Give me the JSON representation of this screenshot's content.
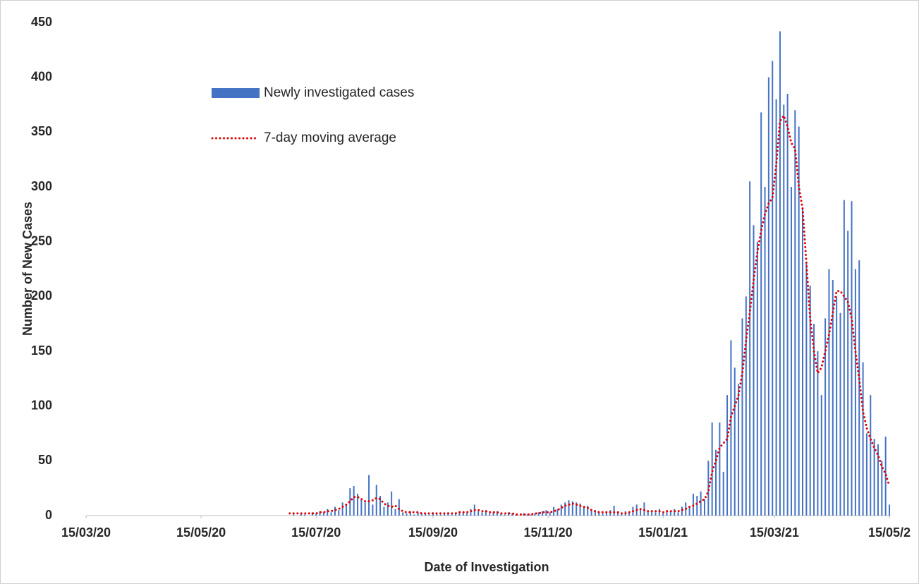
{
  "chart_data": {
    "type": "bar_line",
    "x_label": "Date of Investigation",
    "y_label": "Number of New Cases",
    "xlim": [
      0,
      426
    ],
    "xticks": [
      {
        "value": 0,
        "label": "15/03/20"
      },
      {
        "value": 61,
        "label": "15/05/20"
      },
      {
        "value": 122,
        "label": "15/07/20"
      },
      {
        "value": 184,
        "label": "15/09/20"
      },
      {
        "value": 245,
        "label": "15/11/20"
      },
      {
        "value": 306,
        "label": "15/01/21"
      },
      {
        "value": 365,
        "label": "15/03/21"
      },
      {
        "value": 426,
        "label": "15/05/2"
      }
    ],
    "ylim": [
      0,
      450
    ],
    "yticks": [
      0,
      50,
      100,
      150,
      200,
      250,
      300,
      350,
      400,
      450
    ],
    "grid": false,
    "x": [
      108,
      110,
      112,
      114,
      116,
      118,
      120,
      122,
      124,
      126,
      128,
      130,
      132,
      134,
      136,
      138,
      140,
      142,
      144,
      146,
      148,
      150,
      152,
      154,
      156,
      158,
      160,
      162,
      164,
      166,
      168,
      170,
      172,
      174,
      176,
      178,
      180,
      182,
      184,
      186,
      188,
      190,
      192,
      194,
      196,
      198,
      200,
      202,
      204,
      206,
      208,
      210,
      212,
      214,
      216,
      218,
      220,
      222,
      224,
      226,
      228,
      230,
      232,
      234,
      236,
      238,
      240,
      242,
      244,
      246,
      248,
      250,
      252,
      254,
      256,
      258,
      260,
      262,
      264,
      266,
      268,
      270,
      272,
      274,
      276,
      278,
      280,
      282,
      284,
      286,
      288,
      290,
      292,
      294,
      296,
      298,
      300,
      302,
      304,
      306,
      308,
      310,
      312,
      314,
      316,
      318,
      320,
      322,
      324,
      326,
      328,
      330,
      332,
      334,
      336,
      338,
      340,
      342,
      344,
      346,
      348,
      350,
      352,
      354,
      356,
      358,
      360,
      362,
      364,
      366,
      368,
      370,
      372,
      374,
      376,
      378,
      380,
      382,
      384,
      386,
      388,
      390,
      392,
      394,
      396,
      398,
      400,
      402,
      404,
      406,
      408,
      410,
      412,
      414,
      416,
      418,
      420,
      422,
      424,
      426
    ],
    "series": [
      {
        "name": "Newly investigated cases",
        "kind": "bar",
        "color": "#4472c4",
        "values": [
          0,
          1,
          0,
          2,
          1,
          0,
          3,
          2,
          4,
          3,
          6,
          3,
          8,
          5,
          12,
          10,
          25,
          27,
          20,
          15,
          12,
          37,
          10,
          28,
          18,
          8,
          12,
          22,
          6,
          15,
          3,
          2,
          4,
          1,
          3,
          2,
          2,
          1,
          3,
          2,
          1,
          2,
          3,
          1,
          2,
          4,
          3,
          2,
          6,
          10,
          4,
          3,
          5,
          2,
          3,
          4,
          2,
          1,
          3,
          2,
          1,
          0,
          2,
          1,
          1,
          2,
          3,
          4,
          5,
          3,
          8,
          6,
          10,
          12,
          14,
          13,
          12,
          11,
          8,
          9,
          6,
          5,
          4,
          2,
          3,
          5,
          9,
          3,
          2,
          4,
          3,
          8,
          10,
          6,
          12,
          4,
          5,
          3,
          6,
          2,
          5,
          4,
          6,
          3,
          8,
          12,
          8,
          20,
          18,
          22,
          15,
          50,
          85,
          60,
          85,
          40,
          110,
          160,
          135,
          120,
          180,
          200,
          305,
          265,
          250,
          368,
          300,
          400,
          415,
          380,
          442,
          375,
          385,
          300,
          370,
          355,
          280,
          230,
          210,
          175,
          150,
          110,
          180,
          225,
          215,
          200,
          185,
          288,
          260,
          287,
          225,
          233,
          140,
          75,
          110,
          70,
          65,
          50,
          72,
          10
        ]
      },
      {
        "name": "7-day moving average",
        "kind": "line",
        "color": "#e00000",
        "values": [
          2,
          2,
          2,
          2,
          2,
          2,
          2,
          2,
          3,
          3,
          4,
          4,
          5,
          6,
          8,
          10,
          13,
          17,
          17,
          15,
          13,
          13,
          14,
          16,
          15,
          11,
          9,
          8,
          9,
          6,
          4,
          3,
          3,
          3,
          3,
          2,
          2,
          2,
          2,
          2,
          2,
          2,
          2,
          2,
          2,
          3,
          3,
          3,
          4,
          5,
          5,
          4,
          4,
          3,
          3,
          3,
          2,
          2,
          2,
          2,
          1,
          1,
          1,
          1,
          1,
          2,
          2,
          3,
          3,
          3,
          4,
          5,
          7,
          9,
          10,
          11,
          10,
          9,
          8,
          7,
          5,
          4,
          3,
          3,
          3,
          3,
          3,
          3,
          2,
          2,
          3,
          4,
          5,
          6,
          5,
          4,
          4,
          4,
          4,
          3,
          4,
          4,
          4,
          4,
          5,
          6,
          8,
          9,
          11,
          13,
          15,
          22,
          40,
          50,
          62,
          66,
          70,
          90,
          100,
          110,
          130,
          160,
          185,
          215,
          240,
          260,
          275,
          285,
          290,
          320,
          360,
          365,
          355,
          340,
          335,
          300,
          280,
          230,
          180,
          150,
          130,
          135,
          150,
          165,
          185,
          205,
          205,
          200,
          195,
          180,
          150,
          125,
          95,
          80,
          70,
          62,
          55,
          45,
          38,
          27
        ]
      }
    ]
  }
}
